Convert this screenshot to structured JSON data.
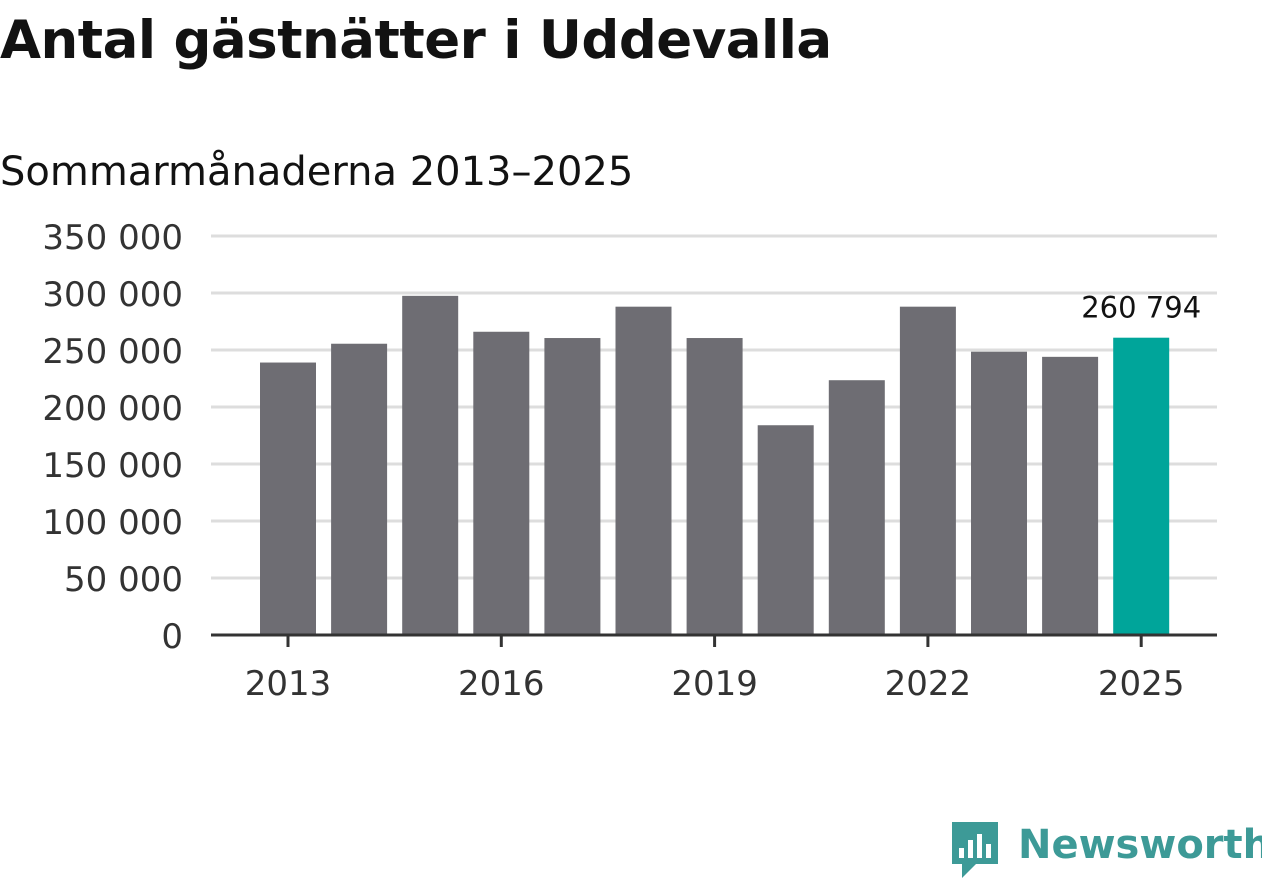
{
  "header": {
    "title": "Antal gästnätter i Uddevalla",
    "subtitle": "Sommarmånaderna 2013–2025"
  },
  "chart_data": {
    "type": "bar",
    "categories": [
      "2013",
      "2014",
      "2015",
      "2016",
      "2017",
      "2018",
      "2019",
      "2020",
      "2021",
      "2022",
      "2023",
      "2024",
      "2025"
    ],
    "values": [
      239000,
      255500,
      297500,
      266000,
      260500,
      288000,
      260500,
      184000,
      223500,
      288000,
      248500,
      244000,
      260794
    ],
    "highlight_index": 12,
    "highlight_label": "260 794",
    "ylim": [
      0,
      350000
    ],
    "yticks": [
      0,
      50000,
      100000,
      150000,
      200000,
      250000,
      300000,
      350000
    ],
    "ytick_labels": [
      "0",
      "50 000",
      "100 000",
      "150 000",
      "200 000",
      "250 000",
      "300 000",
      "350 000"
    ],
    "xtick_labels": [
      "2013",
      "2016",
      "2019",
      "2022",
      "2025"
    ],
    "xtick_indices": [
      0,
      3,
      6,
      9,
      12
    ],
    "grid": true,
    "colors": {
      "bar": "#6e6d73",
      "highlight": "#00a59a",
      "grid": "#dddddd",
      "axis": "#333333",
      "tick_text": "#333333"
    }
  },
  "logo": {
    "text": "Newsworthy",
    "color": "#3d9a97",
    "icon": "newsworthy-chart-icon"
  }
}
